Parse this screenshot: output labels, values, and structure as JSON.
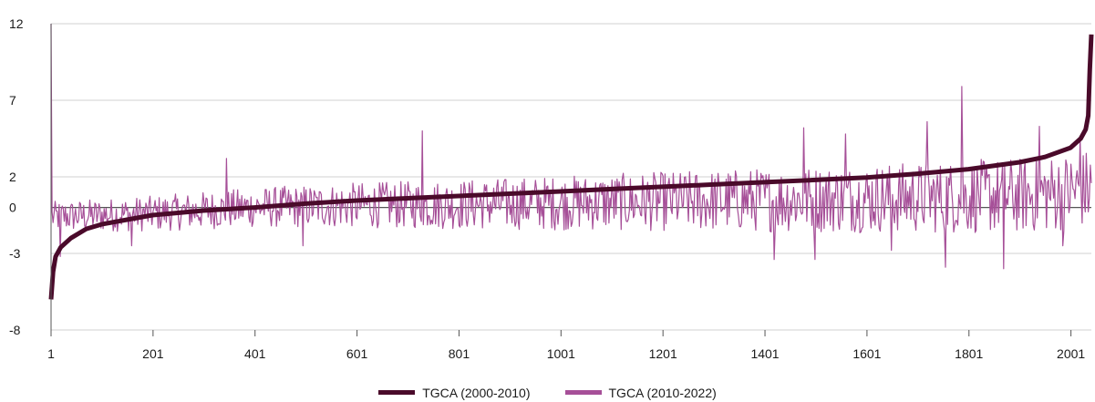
{
  "chart_data": {
    "type": "line",
    "title": "",
    "xlabel": "",
    "ylabel": "",
    "xlim": [
      1,
      2041
    ],
    "ylim": [
      -8,
      12
    ],
    "x_ticks": [
      1,
      201,
      401,
      601,
      801,
      1001,
      1201,
      1401,
      1601,
      1801,
      2001
    ],
    "x_tick_labels": [
      "1",
      "201",
      "401",
      "601",
      "801",
      "1001",
      "1201",
      "1401",
      "1601",
      "1801",
      "2001"
    ],
    "y_ticks": [
      -8,
      -3,
      0,
      2,
      7,
      12
    ],
    "y_tick_labels": [
      "-8",
      "-3",
      "0",
      "2",
      "7",
      "12"
    ],
    "grid": "horizontal",
    "legend_position": "bottom-center",
    "series": [
      {
        "name": "TGCA (2000-2010)",
        "color": "#4a0a2a",
        "style": "thick-line",
        "x": [
          1,
          5,
          10,
          20,
          40,
          70,
          100,
          150,
          200,
          300,
          400,
          500,
          600,
          700,
          800,
          900,
          1000,
          1100,
          1200,
          1300,
          1400,
          1500,
          1600,
          1700,
          1800,
          1900,
          1950,
          2000,
          2020,
          2030,
          2035,
          2038,
          2041
        ],
        "values": [
          -6.0,
          -4.2,
          -3.2,
          -2.6,
          -2.0,
          -1.4,
          -1.1,
          -0.8,
          -0.5,
          -0.2,
          0.0,
          0.25,
          0.45,
          0.6,
          0.75,
          0.9,
          1.05,
          1.2,
          1.35,
          1.5,
          1.65,
          1.8,
          1.95,
          2.2,
          2.5,
          2.95,
          3.3,
          3.9,
          4.5,
          5.1,
          6.0,
          9.0,
          11.3
        ]
      },
      {
        "name": "TGCA (2010-2022)",
        "color": "#a64f98",
        "style": "thin-noisy-line",
        "trend_x": [
          1,
          100,
          200,
          400,
          600,
          800,
          1000,
          1200,
          1400,
          1600,
          1800,
          1900,
          2000,
          2041
        ],
        "trend_values": [
          -0.6,
          -0.5,
          -0.4,
          0.0,
          0.15,
          0.2,
          0.3,
          0.4,
          0.5,
          0.6,
          0.7,
          0.8,
          1.0,
          1.3
        ],
        "spikes": [
          {
            "x": 1,
            "value": 12.0
          },
          {
            "x": 2,
            "value": -7.5
          },
          {
            "x": 20,
            "value": -3.2
          },
          {
            "x": 160,
            "value": -2.5
          },
          {
            "x": 345,
            "value": 3.2
          },
          {
            "x": 495,
            "value": -2.5
          },
          {
            "x": 730,
            "value": 5.0
          },
          {
            "x": 1420,
            "value": -3.4
          },
          {
            "x": 1478,
            "value": 5.2
          },
          {
            "x": 1500,
            "value": -3.4
          },
          {
            "x": 1560,
            "value": 4.8
          },
          {
            "x": 1650,
            "value": -2.8
          },
          {
            "x": 1720,
            "value": 5.6
          },
          {
            "x": 1755,
            "value": -3.9
          },
          {
            "x": 1787,
            "value": 7.9
          },
          {
            "x": 1870,
            "value": -4.0
          },
          {
            "x": 1940,
            "value": 5.3
          },
          {
            "x": 1985,
            "value": -2.5
          },
          {
            "x": 2020,
            "value": 4.6
          }
        ]
      }
    ]
  },
  "legend": {
    "items": [
      {
        "label": "TGCA (2000-2010)",
        "color": "#4a0a2a"
      },
      {
        "label": "TGCA (2010-2022)",
        "color": "#a64f98"
      }
    ]
  }
}
